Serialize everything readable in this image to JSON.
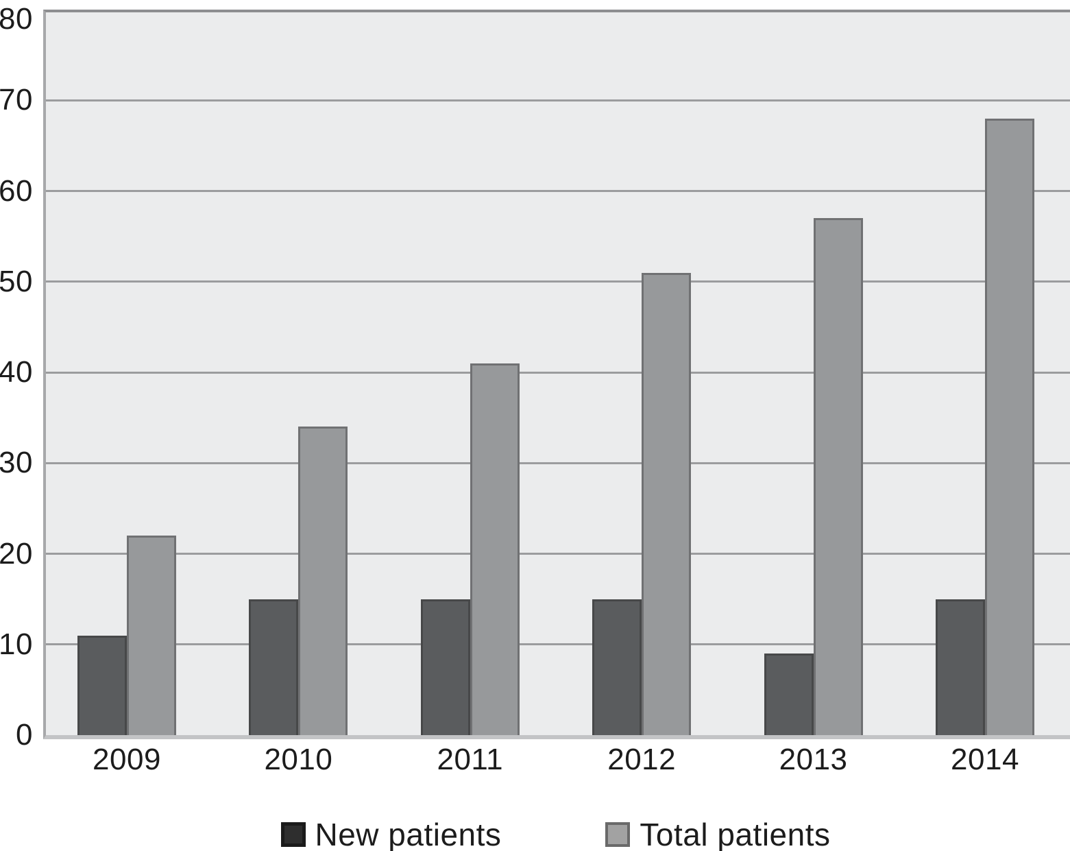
{
  "chart_data": {
    "type": "bar",
    "title": "",
    "xlabel": "",
    "ylabel": "",
    "categories": [
      "2009",
      "2010",
      "2011",
      "2012",
      "2013",
      "2014"
    ],
    "series": [
      {
        "name": "New patients",
        "values": [
          11,
          15,
          15,
          15,
          9,
          15
        ],
        "bar_fill": "#5a5c5e",
        "bar_border": "#474849",
        "legend_fill": "#2e2e2e",
        "legend_border": "#1b1b1b"
      },
      {
        "name": "Total patients",
        "values": [
          22,
          34,
          41,
          51,
          57,
          68
        ],
        "bar_fill": "#97999b",
        "bar_border": "#707173",
        "legend_fill": "#a2a2a2",
        "legend_border": "#6a6a6a"
      }
    ],
    "ylim": [
      0,
      80
    ],
    "yticks": [
      0,
      10,
      20,
      30,
      40,
      50,
      60,
      70,
      80
    ],
    "grid": true,
    "legend_position": "bottom",
    "plot_bg": "#ebeced",
    "gridline_color": "#9b9c9e",
    "text_color": "#1c1c1c"
  }
}
